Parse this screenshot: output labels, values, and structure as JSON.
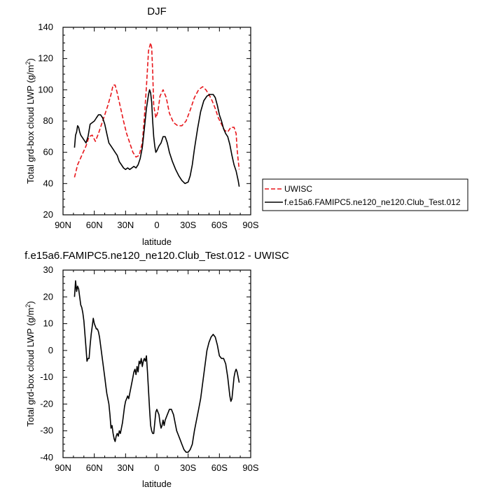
{
  "chart_data": [
    {
      "type": "line",
      "title": "DJF",
      "xlabel": "latitude",
      "ylabel": "Total grd-box cloud LWP (g/m^2)",
      "ylabel_base": "Total grd-box cloud LWP (g/m",
      "ylabel_sup": "2",
      "ylabel_end": ")",
      "xlim": [
        90,
        -90
      ],
      "ylim": [
        20,
        140
      ],
      "x_ticks": [
        90,
        60,
        30,
        0,
        -30,
        -60,
        -90
      ],
      "x_tick_labels": [
        "90N",
        "60N",
        "30N",
        "0",
        "30S",
        "60S",
        "90S"
      ],
      "y_ticks": [
        20,
        40,
        60,
        80,
        100,
        120,
        140
      ],
      "y_tick_labels": [
        "20",
        "40",
        "60",
        "80",
        "100",
        "120",
        "140"
      ],
      "legend": [
        "UWISC",
        "f.e15a6.FAMIPC5.ne120_ne120.Club_Test.012"
      ],
      "series": [
        {
          "name": "UWISC",
          "color": "#e8161b",
          "dash": "dashed",
          "x": [
            79,
            76,
            72,
            68,
            65,
            62,
            59,
            56,
            53,
            50,
            47,
            44,
            42,
            40,
            38,
            36,
            34,
            32,
            29,
            26,
            23,
            20,
            17,
            14,
            12,
            10,
            8,
            6,
            5,
            4,
            3,
            1,
            -1,
            -3,
            -6,
            -9,
            -12,
            -16,
            -20,
            -24,
            -28,
            -32,
            -36,
            -40,
            -44,
            -47,
            -50,
            -53,
            -56,
            -59,
            -62,
            -65,
            -68,
            -71,
            -74,
            -76,
            -77,
            -78,
            -79
          ],
          "values": [
            44,
            52,
            58,
            64,
            70,
            71,
            67,
            72,
            78,
            84,
            90,
            97,
            103,
            103,
            98,
            92,
            86,
            80,
            72,
            66,
            60,
            57,
            58,
            66,
            82,
            102,
            125,
            130,
            127,
            112,
            90,
            82,
            86,
            96,
            100,
            95,
            85,
            79,
            77,
            77,
            80,
            87,
            95,
            100,
            102,
            100,
            97,
            93,
            88,
            82,
            78,
            74,
            73,
            76,
            76,
            72,
            62,
            55,
            49
          ]
        },
        {
          "name": "f.e15a6.FAMIPC5.ne120_ne120.Club_Test.012",
          "color": "#000000",
          "dash": "solid",
          "x": [
            79,
            78,
            77,
            76,
            75,
            74,
            73,
            72,
            70,
            68,
            66,
            64,
            62,
            60,
            58,
            56,
            54,
            52,
            50,
            48,
            46,
            44,
            42,
            40,
            38,
            36,
            34,
            32,
            30,
            28,
            26,
            24,
            22,
            20,
            18,
            16,
            14,
            12,
            10,
            8,
            7,
            6,
            5,
            4,
            3,
            2,
            1,
            0,
            -2,
            -4,
            -6,
            -8,
            -10,
            -12,
            -15,
            -18,
            -21,
            -24,
            -27,
            -30,
            -32,
            -34,
            -36,
            -39,
            -42,
            -45,
            -48,
            -51,
            -54,
            -56,
            -58,
            -60,
            -62,
            -64,
            -66,
            -68,
            -70,
            -72,
            -74,
            -76,
            -78,
            -79
          ],
          "values": [
            63,
            71,
            73,
            77,
            76,
            73,
            71,
            70,
            68,
            66,
            70,
            78,
            79,
            80,
            82,
            84,
            84,
            82,
            78,
            72,
            66,
            64,
            62,
            60,
            58,
            54,
            52,
            50,
            49,
            50,
            49,
            50,
            51,
            50,
            52,
            56,
            63,
            75,
            88,
            97,
            100,
            98,
            92,
            80,
            70,
            64,
            60,
            61,
            64,
            66,
            70,
            70,
            66,
            60,
            54,
            49,
            45,
            42,
            40,
            41,
            45,
            52,
            62,
            75,
            86,
            93,
            96,
            97,
            97,
            95,
            90,
            84,
            80,
            75,
            72,
            70,
            65,
            58,
            52,
            48,
            42,
            38
          ]
        }
      ]
    },
    {
      "type": "line",
      "title": "f.e15a6.FAMIPC5.ne120_ne120.Club_Test.012 - UWISC",
      "xlabel": "latitude",
      "ylabel": "Total grd-box cloud LWP (g/m^2)",
      "ylabel_base": "Total grd-box cloud LWP (g/m",
      "ylabel_sup": "2",
      "ylabel_end": ")",
      "xlim": [
        90,
        -90
      ],
      "ylim": [
        -40,
        30
      ],
      "x_ticks": [
        90,
        60,
        30,
        0,
        -30,
        -60,
        -90
      ],
      "x_tick_labels": [
        "90N",
        "60N",
        "30N",
        "0",
        "30S",
        "60S",
        "90S"
      ],
      "y_ticks": [
        -40,
        -30,
        -20,
        -10,
        0,
        10,
        20,
        30
      ],
      "y_tick_labels": [
        "-40",
        "-30",
        "-20",
        "-10",
        "0",
        "10",
        "20",
        "30"
      ],
      "series": [
        {
          "name": "f.e15a6.FAMIPC5.ne120_ne120.Club_Test.012 - UWISC",
          "color": "#000000",
          "dash": "solid",
          "x": [
            79,
            78,
            77,
            76,
            75,
            74,
            73,
            72,
            71,
            70,
            69,
            68,
            67,
            66,
            65,
            64,
            63,
            62,
            61,
            60,
            59,
            58,
            57,
            56,
            55,
            54,
            53,
            52,
            51,
            50,
            49,
            48,
            47,
            46,
            45,
            44,
            43,
            42,
            41,
            40,
            39,
            38,
            37,
            36,
            35,
            34,
            33,
            32,
            31,
            30,
            29,
            28,
            27,
            26,
            25,
            24,
            23,
            22,
            21,
            20,
            19,
            18,
            17,
            16,
            15,
            14,
            13,
            12,
            11,
            10,
            9,
            8,
            7,
            6,
            5,
            4,
            3,
            2,
            1,
            0,
            -1,
            -2,
            -3,
            -4,
            -5,
            -6,
            -7,
            -8,
            -9,
            -10,
            -11,
            -12,
            -13,
            -14,
            -15,
            -16,
            -17,
            -18,
            -19,
            -20,
            -22,
            -24,
            -26,
            -28,
            -30,
            -32,
            -34,
            -36,
            -38,
            -40,
            -42,
            -44,
            -46,
            -48,
            -50,
            -52,
            -54,
            -56,
            -58,
            -60,
            -62,
            -64,
            -66,
            -68,
            -70,
            -71,
            -72,
            -73,
            -74,
            -75,
            -76,
            -77,
            -78,
            -79
          ],
          "values": [
            20,
            26,
            22,
            24,
            23,
            20,
            17,
            16,
            14,
            11,
            6,
            1,
            -4,
            -3,
            -3,
            2,
            6,
            9,
            12,
            10,
            9,
            8,
            8,
            7,
            5,
            2,
            -1,
            -4,
            -7,
            -10,
            -13,
            -16,
            -18,
            -20,
            -24,
            -29,
            -28,
            -31,
            -33,
            -34,
            -32,
            -31,
            -32,
            -30,
            -31,
            -29,
            -27,
            -24,
            -21,
            -19,
            -18,
            -17,
            -18,
            -16,
            -14,
            -12,
            -10,
            -8,
            -7,
            -9,
            -6,
            -8,
            -4,
            -5,
            -3,
            -6,
            -4,
            -3,
            -4,
            -2,
            -8,
            -15,
            -22,
            -28,
            -30,
            -31,
            -31,
            -27,
            -23,
            -22,
            -23,
            -24,
            -27,
            -29,
            -28,
            -26,
            -28,
            -26,
            -25,
            -24,
            -23,
            -22,
            -22,
            -22,
            -23,
            -24,
            -26,
            -28,
            -30,
            -31,
            -33,
            -35,
            -37,
            -38,
            -38,
            -37,
            -35,
            -30,
            -26,
            -22,
            -18,
            -12,
            -6,
            0,
            3,
            5,
            6,
            5,
            2,
            -2,
            -3,
            -3,
            -5,
            -10,
            -17,
            -19,
            -18,
            -14,
            -10,
            -8,
            -7,
            -8,
            -10,
            -12
          ]
        }
      ]
    }
  ]
}
